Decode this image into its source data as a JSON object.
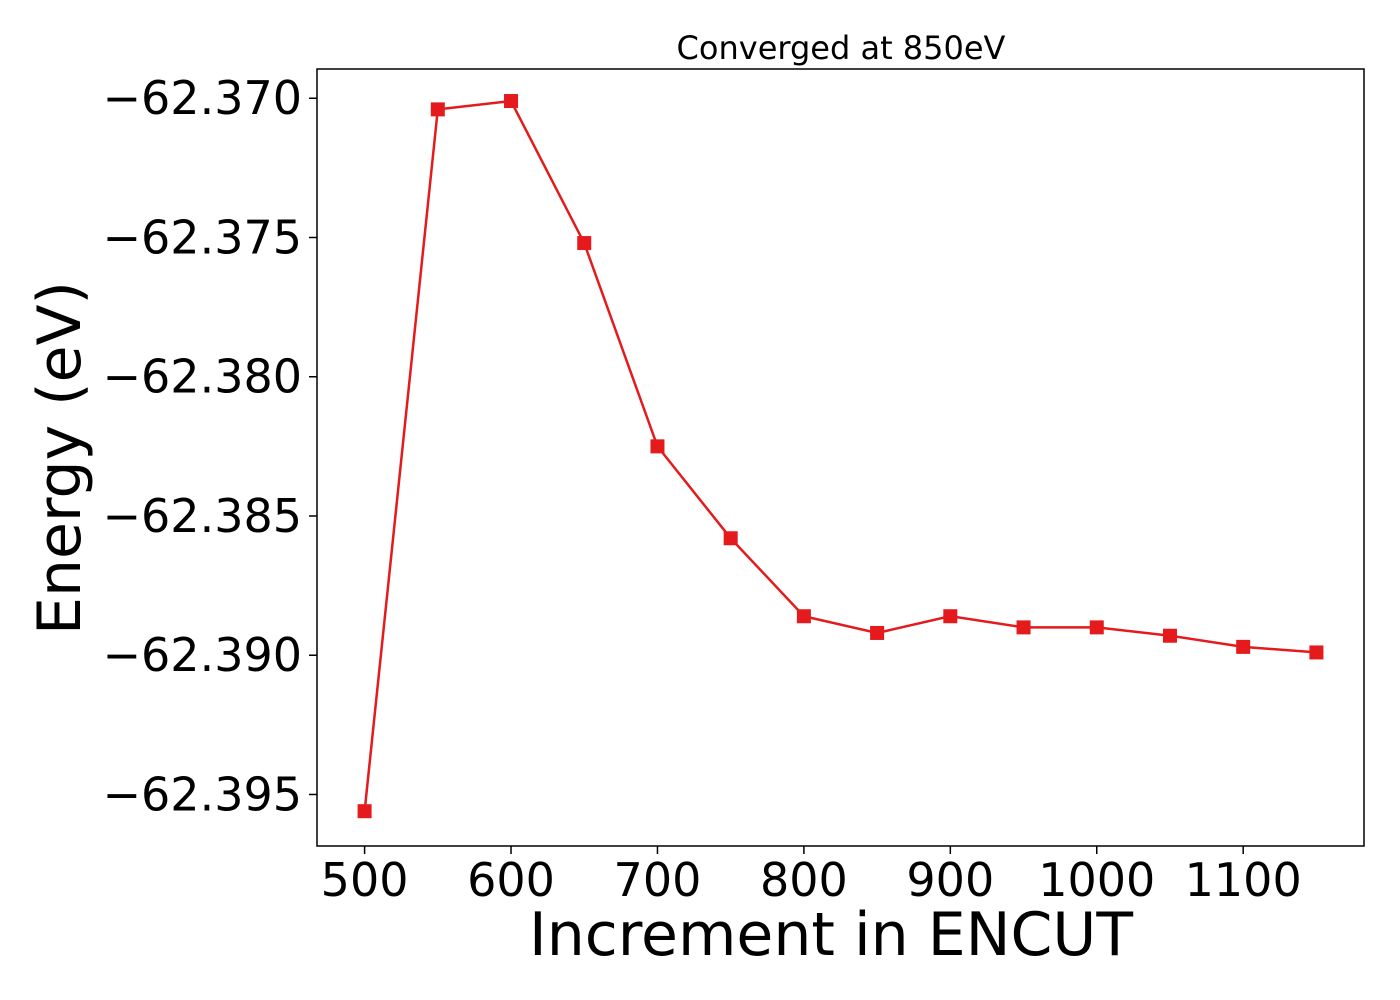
{
  "chart_data": {
    "type": "line",
    "title": "Converged at 850eV",
    "xlabel": "Increment in ENCUT",
    "ylabel": "Energy (eV)",
    "xlim": [
      467.5,
      1182.5
    ],
    "ylim": [
      -62.39685,
      -62.36895
    ],
    "x_ticks": [
      500,
      600,
      700,
      800,
      900,
      1000,
      1100
    ],
    "x_tick_labels": [
      "500",
      "600",
      "700",
      "800",
      "900",
      "1000",
      "1100"
    ],
    "y_ticks": [
      -62.37,
      -62.375,
      -62.38,
      -62.385,
      -62.39,
      -62.395
    ],
    "y_tick_labels": [
      "−62.370",
      "−62.375",
      "−62.380",
      "−62.385",
      "−62.390",
      "−62.395"
    ],
    "grid": false,
    "line_color": "#e41a1c",
    "marker": "square",
    "series": [
      {
        "x": [
          500,
          550,
          600,
          650,
          700,
          750,
          800,
          850,
          900,
          950,
          1000,
          1050,
          1100,
          1150
        ],
        "y": [
          -62.3956,
          -62.3704,
          -62.3701,
          -62.3752,
          -62.3825,
          -62.3858,
          -62.3886,
          -62.3892,
          -62.3886,
          -62.389,
          -62.389,
          -62.3893,
          -62.3897,
          -62.3899
        ]
      }
    ]
  }
}
